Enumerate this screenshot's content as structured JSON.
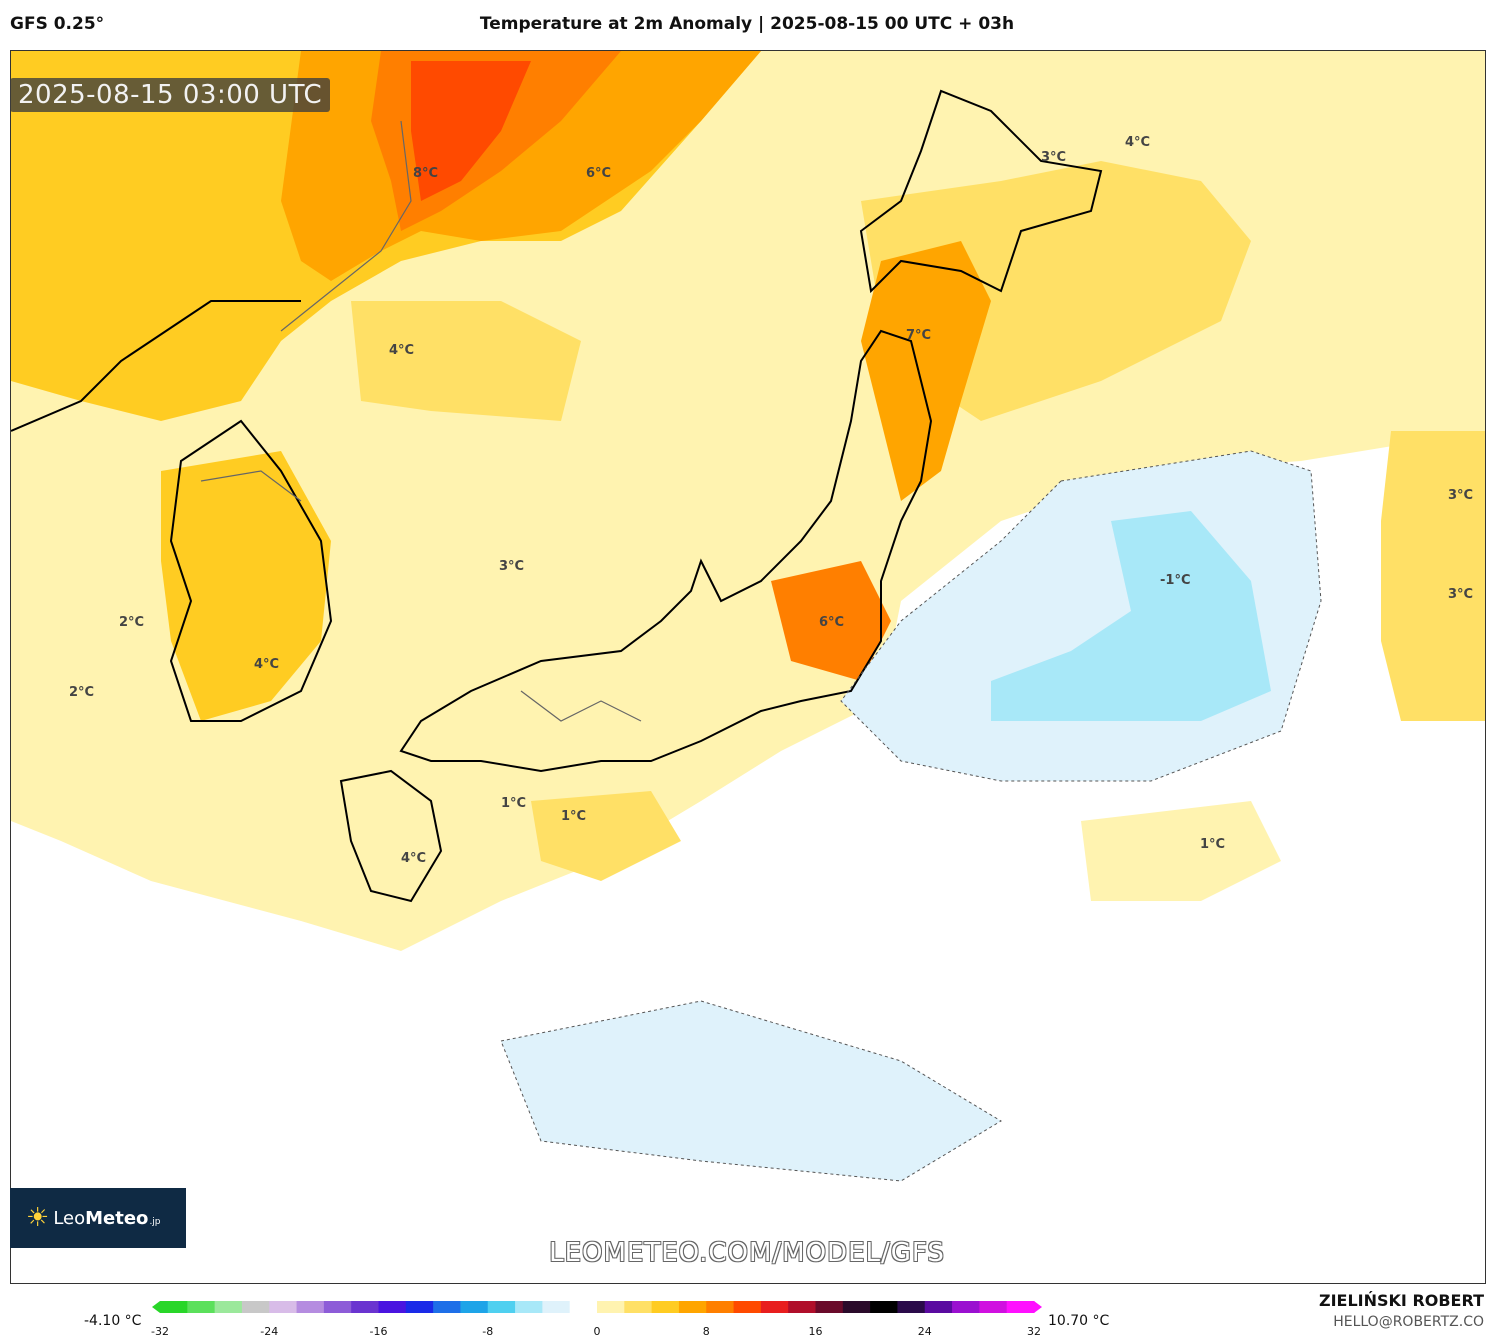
{
  "header": {
    "model": "GFS 0.25°",
    "title": "Temperature at 2m Anomaly | 2025-08-15 00 UTC + 03h"
  },
  "map": {
    "timestamp": "2025-08-15 03:00 UTC",
    "watermark": "LEOMETEO.COM/MODEL/GFS",
    "labels": {
      "l1": "8°C",
      "l2": "6°C",
      "l3": "3°C",
      "l4": "4°C",
      "l5": "4°C",
      "l6": "7°C",
      "l7": "3°C",
      "l8": "-1°C",
      "l9": "3°C",
      "l10": "3°C",
      "l11": "2°C",
      "l12": "2°C",
      "l13": "4°C",
      "l14": "6°C",
      "l15": "1°C",
      "l16": "1°C",
      "l17": "4°C",
      "l18": "1°C"
    }
  },
  "logo": {
    "name": "Leo",
    "bold": "Meteo",
    "suffix": ".jp"
  },
  "colorbar": {
    "min_label": "-4.10 °C",
    "max_label": "10.70 °C",
    "ticks": [
      "-32",
      "-24",
      "-16",
      "-8",
      "0",
      "8",
      "16",
      "24",
      "32"
    ],
    "colors": [
      "#29d629",
      "#5be05b",
      "#9be89b",
      "#c8c8c8",
      "#d8bce8",
      "#b58ce0",
      "#8d5cd8",
      "#6a34d0",
      "#4a14e0",
      "#1a2ae8",
      "#1e6fe8",
      "#1ea4e8",
      "#4fd0f0",
      "#a8e8f8",
      "#dff2fb",
      "#ffffff",
      "#fff3b0",
      "#ffe066",
      "#ffcc22",
      "#ffa500",
      "#ff7f00",
      "#ff4a00",
      "#e81e1e",
      "#b00e2a",
      "#6a0a2a",
      "#2a0a2a",
      "#000000",
      "#2a0a4a",
      "#5a0aa0",
      "#9a10d0",
      "#d010e0",
      "#ff10ff"
    ]
  },
  "credits": {
    "name": "ZIELIŃSKI ROBERT",
    "email": "HELLO@ROBERTZ.CO"
  }
}
